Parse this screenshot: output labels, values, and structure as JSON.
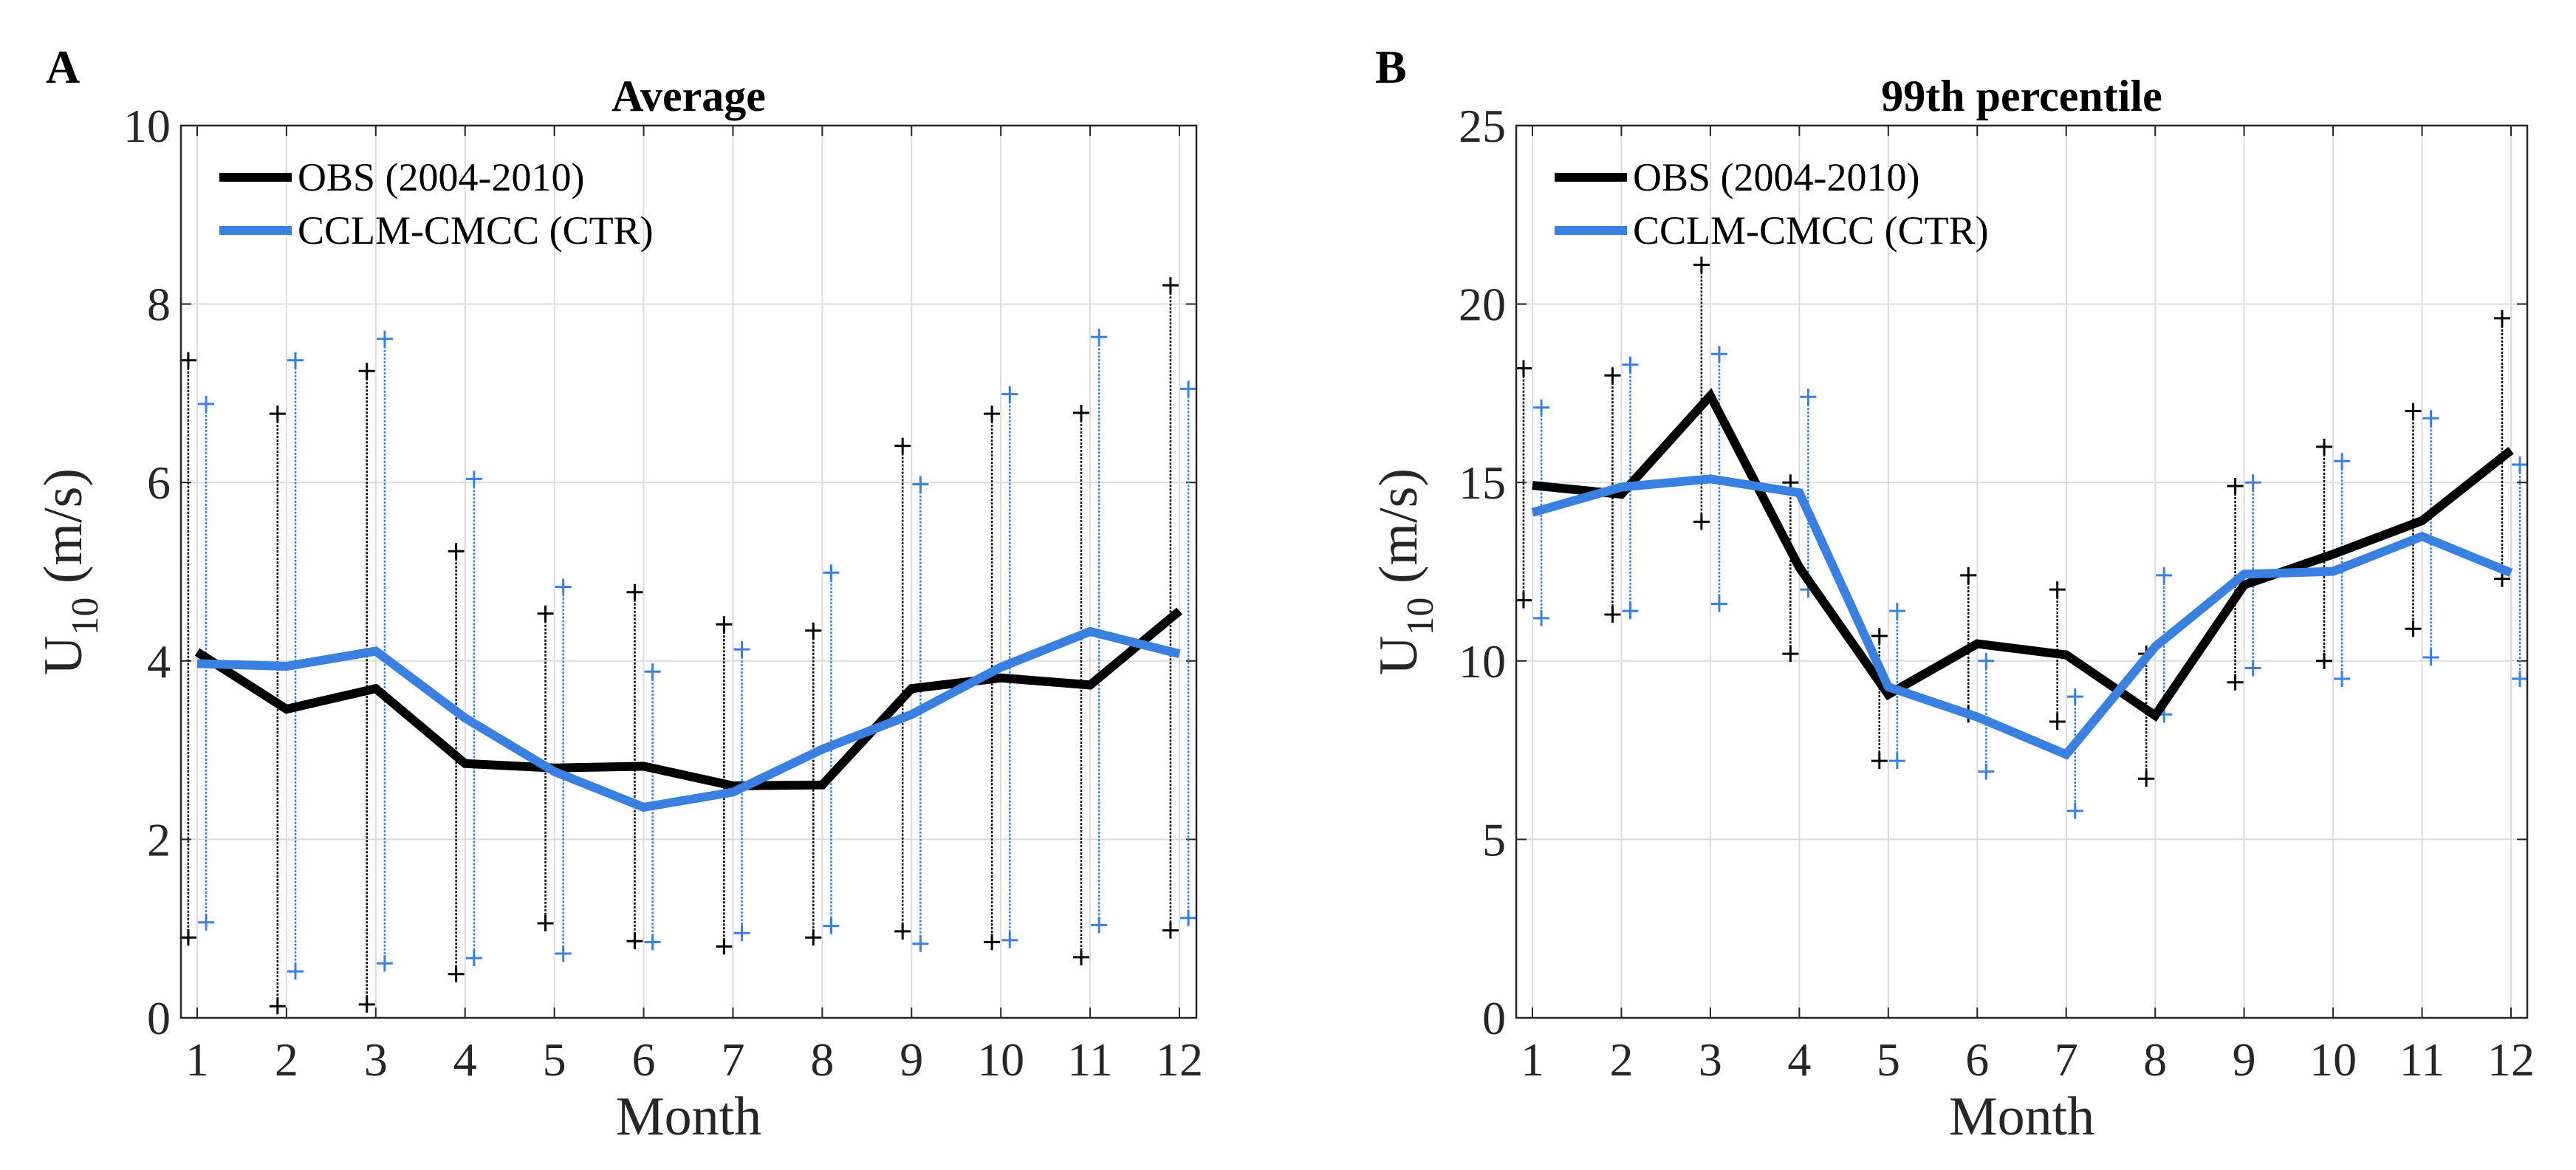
{
  "colors": {
    "obs": "#000000",
    "ctr": "#3a80e0",
    "grid": "#dcdcdc",
    "axis": "#262626"
  },
  "chart_data": [
    {
      "type": "line",
      "panel_label": "A",
      "title": "Average",
      "xlabel": "Month",
      "ylabel_main": "U",
      "ylabel_sub": "10",
      "ylabel_unit": " (m/s)",
      "x": [
        1,
        2,
        3,
        4,
        5,
        6,
        7,
        8,
        9,
        10,
        11,
        12
      ],
      "xticks": [
        "1",
        "2",
        "3",
        "4",
        "5",
        "6",
        "7",
        "8",
        "9",
        "10",
        "11",
        "12"
      ],
      "ylim": [
        0,
        10
      ],
      "yticks": [
        "0",
        "2",
        "4",
        "6",
        "8",
        "10"
      ],
      "ytick_values": [
        0,
        2,
        4,
        6,
        8,
        10
      ],
      "grid": true,
      "legend_placement": "top-left",
      "series": [
        {
          "name": "OBS (2004-2010)",
          "key": "obs",
          "values": [
            4.1,
            3.46,
            3.69,
            2.85,
            2.8,
            2.82,
            2.6,
            2.61,
            3.69,
            3.81,
            3.73,
            4.56
          ],
          "max": [
            7.37,
            6.77,
            7.25,
            5.23,
            4.53,
            4.77,
            4.41,
            4.34,
            6.41,
            6.77,
            6.78,
            8.21
          ],
          "min": [
            0.9,
            0.13,
            0.15,
            0.49,
            1.06,
            0.86,
            0.8,
            0.9,
            0.97,
            0.85,
            0.68,
            0.98
          ]
        },
        {
          "name": "CCLM-CMCC (CTR)",
          "key": "ctr",
          "values": [
            3.97,
            3.94,
            4.11,
            3.36,
            2.76,
            2.36,
            2.53,
            3.01,
            3.4,
            3.93,
            4.33,
            4.08
          ],
          "max": [
            6.88,
            7.37,
            7.61,
            6.04,
            4.83,
            3.88,
            4.13,
            4.99,
            5.98,
            6.99,
            7.63,
            7.05
          ],
          "min": [
            1.07,
            0.52,
            0.61,
            0.67,
            0.72,
            0.85,
            0.95,
            1.03,
            0.83,
            0.87,
            1.04,
            1.12
          ]
        }
      ]
    },
    {
      "type": "line",
      "panel_label": "B",
      "title": "99th percentile",
      "xlabel": "Month",
      "ylabel_main": "U",
      "ylabel_sub": "10",
      "ylabel_unit": " (m/s)",
      "x": [
        1,
        2,
        3,
        4,
        5,
        6,
        7,
        8,
        9,
        10,
        11,
        12
      ],
      "xticks": [
        "1",
        "2",
        "3",
        "4",
        "5",
        "6",
        "7",
        "8",
        "9",
        "10",
        "11",
        "12"
      ],
      "ylim": [
        0,
        25
      ],
      "yticks": [
        "0",
        "5",
        "10",
        "15",
        "20",
        "25"
      ],
      "ytick_values": [
        0,
        5,
        10,
        15,
        20,
        25
      ],
      "grid": true,
      "legend_placement": "top-left",
      "series": [
        {
          "name": "OBS (2004-2010)",
          "key": "obs",
          "values": [
            14.92,
            14.67,
            17.43,
            12.62,
            9.06,
            10.48,
            10.17,
            8.47,
            12.13,
            12.99,
            13.93,
            15.9
          ],
          "max": [
            18.2,
            18.0,
            21.1,
            15.0,
            10.7,
            12.4,
            12.0,
            10.2,
            14.9,
            16.0,
            17.0,
            19.6
          ],
          "min": [
            11.7,
            11.3,
            13.9,
            10.2,
            7.2,
            8.5,
            8.3,
            6.7,
            9.4,
            10.0,
            10.9,
            12.3
          ]
        },
        {
          "name": "CCLM-CMCC (CTR)",
          "key": "ctr",
          "values": [
            14.16,
            14.87,
            15.1,
            14.71,
            9.27,
            8.43,
            7.38,
            10.4,
            12.43,
            12.51,
            13.49,
            12.47
          ],
          "max": [
            17.1,
            18.3,
            18.6,
            17.4,
            11.4,
            10.0,
            9.0,
            12.4,
            15.0,
            15.6,
            16.8,
            15.5
          ],
          "min": [
            11.2,
            11.4,
            11.6,
            12.0,
            7.2,
            6.9,
            5.8,
            8.5,
            9.8,
            9.5,
            10.1,
            9.5
          ]
        }
      ]
    }
  ]
}
